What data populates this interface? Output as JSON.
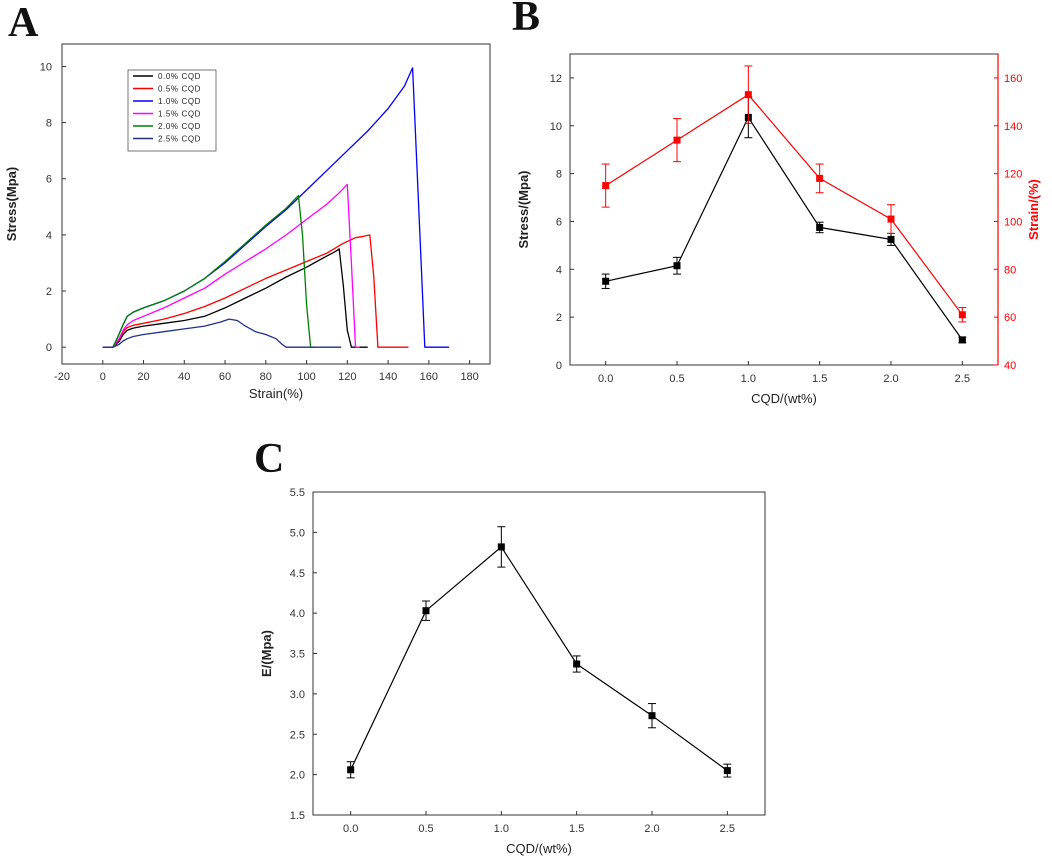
{
  "panel_labels": [
    "A",
    "B",
    "C"
  ],
  "chart_data": [
    {
      "id": "A",
      "type": "line",
      "xlabel": "Strain(%)",
      "ylabel": "Stress(Mpa)",
      "xlim": [
        -20,
        190
      ],
      "ylim": [
        -0.6,
        10.8
      ],
      "xticks": [
        -20,
        0,
        20,
        40,
        60,
        80,
        100,
        120,
        140,
        160,
        180
      ],
      "yticks": [
        0,
        2,
        4,
        6,
        8,
        10
      ],
      "legend_position": "top-left",
      "series": [
        {
          "name": "0.0% CQD",
          "color": "#000000",
          "x": [
            0,
            5,
            8,
            10,
            12,
            15,
            20,
            30,
            40,
            50,
            60,
            70,
            80,
            90,
            100,
            105,
            110,
            114,
            116,
            118,
            120,
            122,
            125,
            130
          ],
          "y": [
            0,
            0,
            0.2,
            0.45,
            0.6,
            0.68,
            0.75,
            0.85,
            0.95,
            1.1,
            1.4,
            1.75,
            2.1,
            2.5,
            2.85,
            3.05,
            3.25,
            3.4,
            3.5,
            2.2,
            0.6,
            0,
            0,
            0
          ]
        },
        {
          "name": "0.5% CQD",
          "color": "#ff0000",
          "x": [
            0,
            5,
            8,
            10,
            12,
            15,
            20,
            30,
            40,
            50,
            60,
            70,
            80,
            90,
            100,
            110,
            118,
            124,
            128,
            131,
            133,
            135,
            140,
            150
          ],
          "y": [
            0,
            0,
            0.25,
            0.55,
            0.7,
            0.78,
            0.85,
            1.0,
            1.2,
            1.45,
            1.75,
            2.1,
            2.45,
            2.75,
            3.05,
            3.35,
            3.7,
            3.9,
            3.95,
            4.0,
            2.5,
            0,
            0,
            0
          ]
        },
        {
          "name": "1.0% CQD",
          "color": "#0000ff",
          "x": [
            0,
            5,
            7,
            10,
            12,
            15,
            20,
            30,
            40,
            50,
            60,
            70,
            80,
            90,
            100,
            110,
            120,
            130,
            140,
            148,
            152,
            155,
            158,
            160,
            170
          ],
          "y": [
            0,
            0,
            0.3,
            0.8,
            1.1,
            1.25,
            1.4,
            1.65,
            2.0,
            2.45,
            3.0,
            3.65,
            4.3,
            4.9,
            5.6,
            6.3,
            7.0,
            7.7,
            8.5,
            9.3,
            9.95,
            5.0,
            0,
            0,
            0
          ]
        },
        {
          "name": "1.5% CQD",
          "color": "#ff00ff",
          "x": [
            0,
            5,
            8,
            10,
            12,
            15,
            20,
            30,
            40,
            50,
            60,
            70,
            80,
            90,
            100,
            110,
            116,
            120,
            122,
            124,
            126
          ],
          "y": [
            0,
            0,
            0.3,
            0.6,
            0.8,
            0.95,
            1.1,
            1.4,
            1.75,
            2.1,
            2.6,
            3.05,
            3.5,
            4.0,
            4.55,
            5.1,
            5.5,
            5.8,
            3.0,
            0,
            0
          ]
        },
        {
          "name": "2.0% CQD",
          "color": "#008000",
          "x": [
            0,
            5,
            7,
            10,
            12,
            15,
            20,
            30,
            40,
            50,
            60,
            70,
            80,
            90,
            96,
            98,
            100,
            102,
            104
          ],
          "y": [
            0,
            0,
            0.3,
            0.8,
            1.1,
            1.25,
            1.4,
            1.65,
            2.0,
            2.45,
            3.05,
            3.7,
            4.35,
            4.95,
            5.4,
            4.0,
            1.5,
            0,
            0
          ]
        },
        {
          "name": "2.5% CQD",
          "color": "#1f2f8f",
          "x": [
            0,
            5,
            8,
            10,
            12,
            15,
            20,
            30,
            40,
            50,
            58,
            62,
            66,
            70,
            75,
            80,
            85,
            88,
            90,
            95,
            100,
            110,
            117
          ],
          "y": [
            0,
            0,
            0.1,
            0.22,
            0.3,
            0.38,
            0.45,
            0.55,
            0.65,
            0.75,
            0.9,
            1.0,
            0.95,
            0.75,
            0.55,
            0.45,
            0.3,
            0.1,
            0,
            0,
            0,
            0,
            0
          ]
        }
      ]
    },
    {
      "id": "B",
      "type": "line",
      "xlabel": "CQD/(wt%)",
      "ylabel": "Stress/(Mpa)",
      "y2label": "Strain/(%)",
      "xlim": [
        -0.25,
        2.75
      ],
      "ylim": [
        0,
        13
      ],
      "y2lim": [
        40,
        170
      ],
      "xticks": [
        0.0,
        0.5,
        1.0,
        1.5,
        2.0,
        2.5
      ],
      "xtick_labels": [
        "0.0",
        "0.5",
        "1.0",
        "1.5",
        "2.0",
        "2.5"
      ],
      "yticks": [
        0,
        2,
        4,
        6,
        8,
        10,
        12
      ],
      "y2ticks": [
        40,
        60,
        80,
        100,
        120,
        140,
        160
      ],
      "x": [
        0.0,
        0.5,
        1.0,
        1.5,
        2.0,
        2.5
      ],
      "series": [
        {
          "name": "Stress",
          "axis": "left",
          "color": "#000000",
          "values": [
            3.5,
            4.15,
            10.35,
            5.75,
            5.25,
            1.05
          ],
          "errors": [
            0.3,
            0.35,
            0.85,
            0.22,
            0.25,
            0.12
          ]
        },
        {
          "name": "Strain",
          "axis": "right",
          "color": "#ff0000",
          "values": [
            115,
            134,
            153,
            118,
            101,
            61
          ],
          "errors": [
            9,
            9,
            12,
            6,
            6,
            3
          ]
        }
      ]
    },
    {
      "id": "C",
      "type": "line",
      "xlabel": "CQD/(wt%)",
      "ylabel": "E/(Mpa)",
      "xlim": [
        -0.25,
        2.75
      ],
      "ylim": [
        1.5,
        5.5
      ],
      "xticks": [
        0.0,
        0.5,
        1.0,
        1.5,
        2.0,
        2.5
      ],
      "xtick_labels": [
        "0.0",
        "0.5",
        "1.0",
        "1.5",
        "2.0",
        "2.5"
      ],
      "yticks": [
        1.5,
        2.0,
        2.5,
        3.0,
        3.5,
        4.0,
        4.5,
        5.0,
        5.5
      ],
      "ytick_labels": [
        "1.5",
        "2.0",
        "2.5",
        "3.0",
        "3.5",
        "4.0",
        "4.5",
        "5.0",
        "5.5"
      ],
      "x": [
        0.0,
        0.5,
        1.0,
        1.5,
        2.0,
        2.5
      ],
      "series": [
        {
          "name": "E",
          "axis": "left",
          "color": "#000000",
          "values": [
            2.06,
            4.03,
            4.82,
            3.37,
            2.73,
            2.05
          ],
          "errors": [
            0.1,
            0.12,
            0.25,
            0.1,
            0.15,
            0.08
          ]
        }
      ]
    }
  ]
}
